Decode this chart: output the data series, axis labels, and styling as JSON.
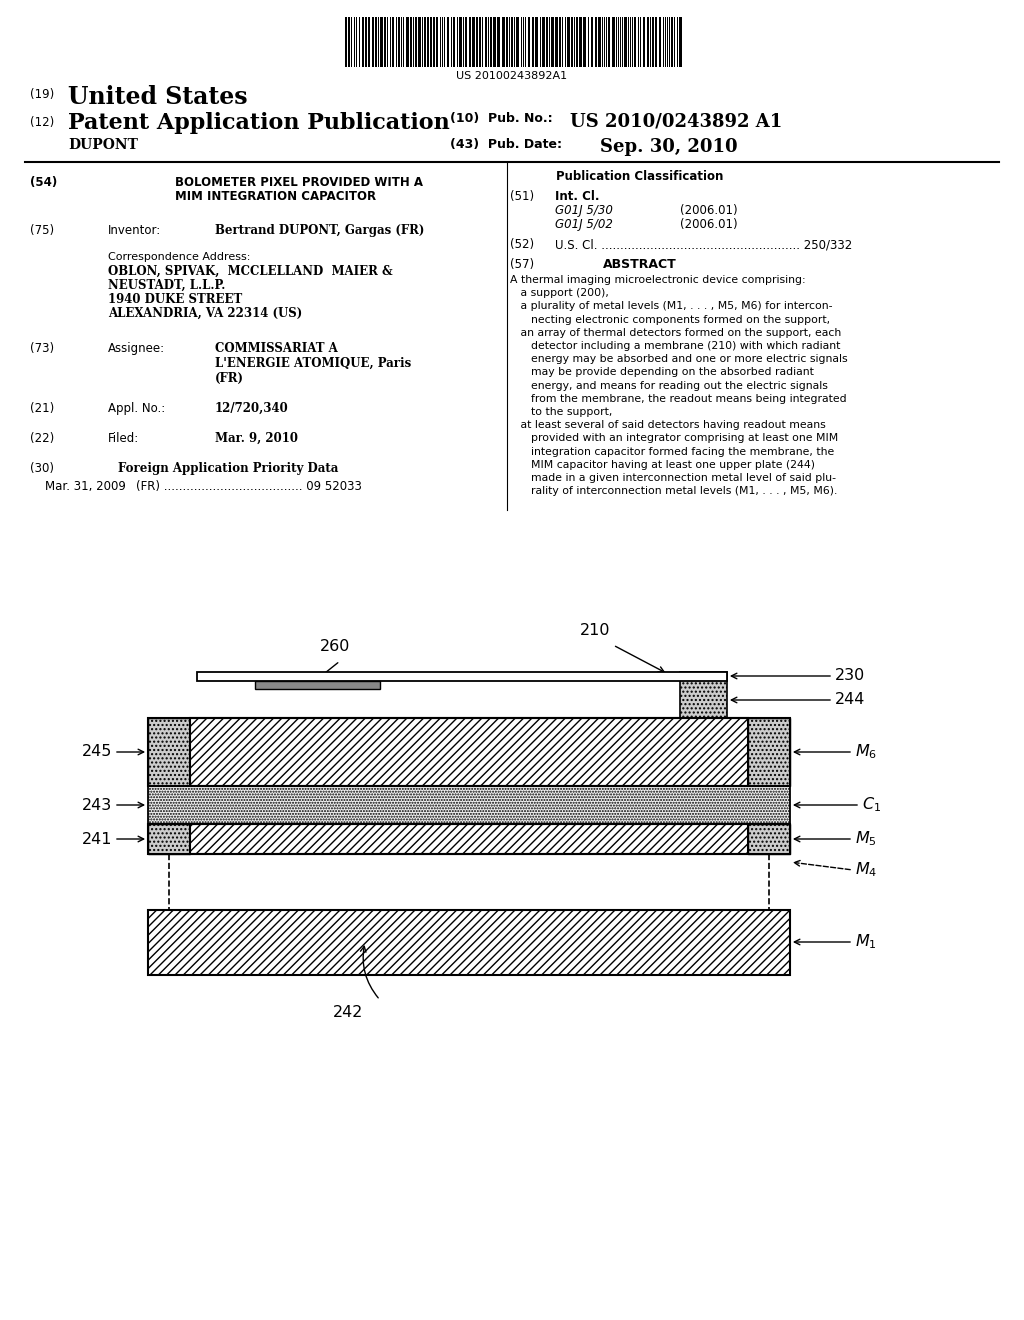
{
  "background_color": "#ffffff",
  "barcode_text": "US 20100243892A1",
  "header": {
    "line1_num": "(19)",
    "line1_text": "United States",
    "line2_num": "(12)",
    "line2_text": "Patent Application Publication",
    "pub_no_label": "(10)  Pub. No.:",
    "pub_no_value": "US 2010/0243892 A1",
    "name": "DUPONT",
    "pub_date_label": "(43)  Pub. Date:",
    "pub_date_value": "Sep. 30, 2010"
  },
  "left": {
    "item54": [
      "BOLOMETER PIXEL PROVIDED WITH A",
      "MIM INTEGRATION CAPACITOR"
    ],
    "item75_label": "Inventor:",
    "item75_val": "Bertrand DUPONT, Gargas (FR)",
    "corr_head": "Correspondence Address:",
    "corr": [
      "OBLON, SPIVAK,  MCCLELLAND  MAIER &",
      "NEUSTADT, L.L.P.",
      "1940 DUKE STREET",
      "ALEXANDRIA, VA 22314 (US)"
    ],
    "item73_label": "Assignee:",
    "item73_val": [
      "COMMISSARIAT A",
      "L'ENERGIE ATOMIQUE, Paris",
      "(FR)"
    ],
    "item21_label": "Appl. No.:",
    "item21_val": "12/720,340",
    "item22_label": "Filed:",
    "item22_val": "Mar. 9, 2010",
    "item30_label": "Foreign Application Priority Data",
    "item30_entry1": "Mar. 31, 2009",
    "item30_entry2": "(FR) ..................................... 09 52033"
  },
  "right": {
    "pub_class": "Publication Classification",
    "item51_label": "Int. Cl.",
    "item51_a": "G01J 5/30",
    "item51_a_yr": "(2006.01)",
    "item51_b": "G01J 5/02",
    "item51_b_yr": "(2006.01)",
    "item52_text": "U.S. Cl. ..................................................... 250/332",
    "abstract_label": "ABSTRACT",
    "abstract": "A thermal imaging microelectronic device comprising:\n   a support (200),\n   a plurality of metal levels (M1, . . . , M5, M6) for intercon-\n      necting electronic components formed on the support,\n   an array of thermal detectors formed on the support, each\n      detector including a membrane (210) with which radiant\n      energy may be absorbed and one or more electric signals\n      may be provide depending on the absorbed radiant\n      energy, and means for reading out the electric signals\n      from the membrane, the readout means being integrated\n      to the support,\n   at least several of said detectors having readout means\n      provided with an integrator comprising at least one MIM\n      integration capacitor formed facing the membrane, the\n      MIM capacitor having at least one upper plate (244)\n      made in a given interconnection metal level of said plu-\n      rality of interconnection metal levels (M1, . . . , M5, M6)."
  }
}
